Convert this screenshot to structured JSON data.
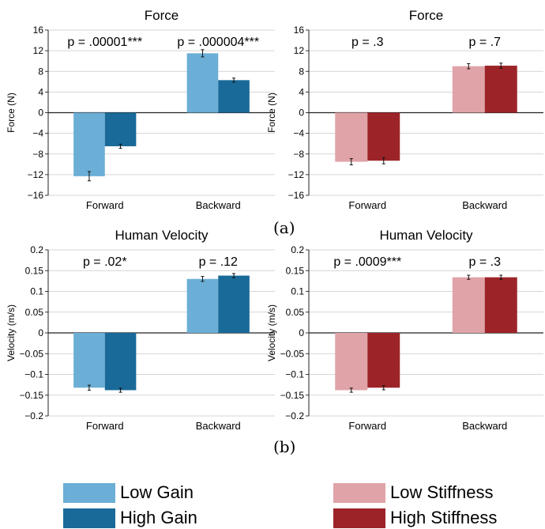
{
  "captions": {
    "a": "(a)",
    "b": "(b)"
  },
  "colors": {
    "low_gain": "#6baed6",
    "high_gain": "#1a6a99",
    "low_stiffness": "#e0a3a8",
    "high_stiffness": "#9c2428"
  },
  "legend": {
    "blue": [
      {
        "label": "Low Gain",
        "color": "#6baed6"
      },
      {
        "label": "High Gain",
        "color": "#1a6a99"
      }
    ],
    "red": [
      {
        "label": "Low Stiffness",
        "color": "#e0a3a8"
      },
      {
        "label": "High Stiffness",
        "color": "#9c2428"
      }
    ]
  },
  "chart_data": [
    {
      "type": "bar",
      "title": "Force",
      "ylabel": "Force (N)",
      "ylim": [
        -16,
        16
      ],
      "yticks": [
        -16,
        -12,
        -8,
        -4,
        0,
        4,
        8,
        12,
        16
      ],
      "ytick_labels": [
        "−16",
        "−12",
        "−8",
        "−4",
        "0",
        "4",
        "8",
        "12",
        "16"
      ],
      "categories": [
        "Forward",
        "Backward"
      ],
      "series": [
        {
          "name": "Low Gain",
          "color": "#6baed6",
          "values": [
            -12.3,
            11.5
          ],
          "errors": [
            0.9,
            0.7
          ]
        },
        {
          "name": "High Gain",
          "color": "#1a6a99",
          "values": [
            -6.5,
            6.3
          ],
          "errors": [
            0.4,
            0.4
          ]
        }
      ],
      "annotations": [
        "p = .00001***",
        "p = .000004***"
      ],
      "grid": "horizontal"
    },
    {
      "type": "bar",
      "title": "Force",
      "ylabel": "Force (N)",
      "ylim": [
        -16,
        16
      ],
      "yticks": [
        -16,
        -12,
        -8,
        -4,
        0,
        4,
        8,
        12,
        16
      ],
      "ytick_labels": [
        "−16",
        "−12",
        "−8",
        "−4",
        "0",
        "4",
        "8",
        "12",
        "16"
      ],
      "categories": [
        "Forward",
        "Backward"
      ],
      "series": [
        {
          "name": "Low Stiffness",
          "color": "#e0a3a8",
          "values": [
            -9.5,
            9.0
          ],
          "errors": [
            0.6,
            0.5
          ]
        },
        {
          "name": "High Stiffness",
          "color": "#9c2428",
          "values": [
            -9.3,
            9.1
          ],
          "errors": [
            0.6,
            0.5
          ]
        }
      ],
      "annotations": [
        "p = .3",
        "p = .7"
      ],
      "grid": "horizontal"
    },
    {
      "type": "bar",
      "title": "Human Velocity",
      "ylabel": "Velocity (m/s)",
      "ylim": [
        -0.2,
        0.2
      ],
      "yticks": [
        -0.2,
        -0.15,
        -0.1,
        -0.05,
        0,
        0.05,
        0.1,
        0.15,
        0.2
      ],
      "ytick_labels": [
        "−0.2",
        "−0.15",
        "−0.1",
        "−0.05",
        "0",
        "0.05",
        "0.1",
        "0.15",
        "0.2"
      ],
      "categories": [
        "Forward",
        "Backward"
      ],
      "series": [
        {
          "name": "Low Gain",
          "color": "#6baed6",
          "values": [
            -0.132,
            0.13
          ],
          "errors": [
            0.006,
            0.006
          ]
        },
        {
          "name": "High Gain",
          "color": "#1a6a99",
          "values": [
            -0.138,
            0.138
          ],
          "errors": [
            0.005,
            0.005
          ]
        }
      ],
      "annotations": [
        "p = .02*",
        "p = .12"
      ],
      "grid": "horizontal"
    },
    {
      "type": "bar",
      "title": "Human Velocity",
      "ylabel": "Velocity (m/s)",
      "ylim": [
        -0.2,
        0.2
      ],
      "yticks": [
        -0.2,
        -0.15,
        -0.1,
        -0.05,
        0,
        0.05,
        0.1,
        0.15,
        0.2
      ],
      "ytick_labels": [
        "−0.2",
        "−0.15",
        "−0.1",
        "−0.05",
        "0",
        "0.05",
        "0.1",
        "0.15",
        "0.2"
      ],
      "categories": [
        "Forward",
        "Backward"
      ],
      "series": [
        {
          "name": "Low Stiffness",
          "color": "#e0a3a8",
          "values": [
            -0.138,
            0.134
          ],
          "errors": [
            0.005,
            0.005
          ]
        },
        {
          "name": "High Stiffness",
          "color": "#9c2428",
          "values": [
            -0.132,
            0.134
          ],
          "errors": [
            0.005,
            0.005
          ]
        }
      ],
      "annotations": [
        "p = .0009***",
        "p = .3"
      ],
      "grid": "horizontal"
    }
  ]
}
